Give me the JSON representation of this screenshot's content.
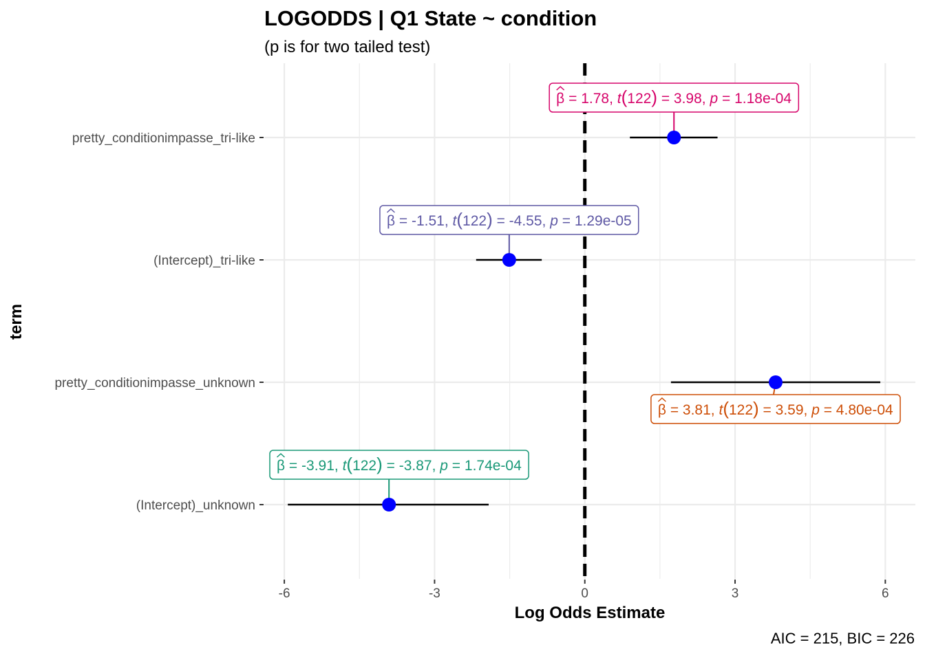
{
  "chart_data": {
    "type": "scatter",
    "title": "LOGODDS | Q1 State ~ condition",
    "subtitle": "(p is for two tailed test)",
    "xlabel": "Log Odds Estimate",
    "ylabel": "term",
    "xlim": [
      -6.4,
      6.6
    ],
    "xticks": [
      -6,
      -3,
      0,
      3,
      6
    ],
    "xtick_labels": [
      "-6",
      "-3",
      "0",
      "3",
      "6"
    ],
    "grid": true,
    "reference_line": 0,
    "caption": "AIC = 215, BIC = 226",
    "terms": [
      {
        "label": "pretty_conditionimpasse_tri-like",
        "estimate": 1.78,
        "conf_low": 0.9,
        "conf_high": 2.65,
        "annotation": {
          "beta": "1.78",
          "df": "122",
          "t": "3.98",
          "p": "1.18e-04",
          "color": "#d6046a",
          "position": "above"
        }
      },
      {
        "label": "(Intercept)_tri-like",
        "estimate": -1.51,
        "conf_low": -2.17,
        "conf_high": -0.86,
        "annotation": {
          "beta": "-1.51",
          "df": "122",
          "t": "-4.55",
          "p": "1.29e-05",
          "color": "#5e58a4",
          "position": "above"
        }
      },
      {
        "label": "pretty_conditionimpasse_unknown",
        "estimate": 3.81,
        "conf_low": 1.72,
        "conf_high": 5.9,
        "annotation": {
          "beta": "3.81",
          "df": "122",
          "t": "3.59",
          "p": "4.80e-04",
          "color": "#cd4e07",
          "position": "below"
        }
      },
      {
        "label": "(Intercept)_unknown",
        "estimate": -3.91,
        "conf_low": -5.93,
        "conf_high": -1.92,
        "annotation": {
          "beta": "-3.91",
          "df": "122",
          "t": "-3.87",
          "p": "1.74e-04",
          "color": "#199877",
          "position": "above"
        }
      }
    ],
    "point_color": "#0000ff"
  }
}
